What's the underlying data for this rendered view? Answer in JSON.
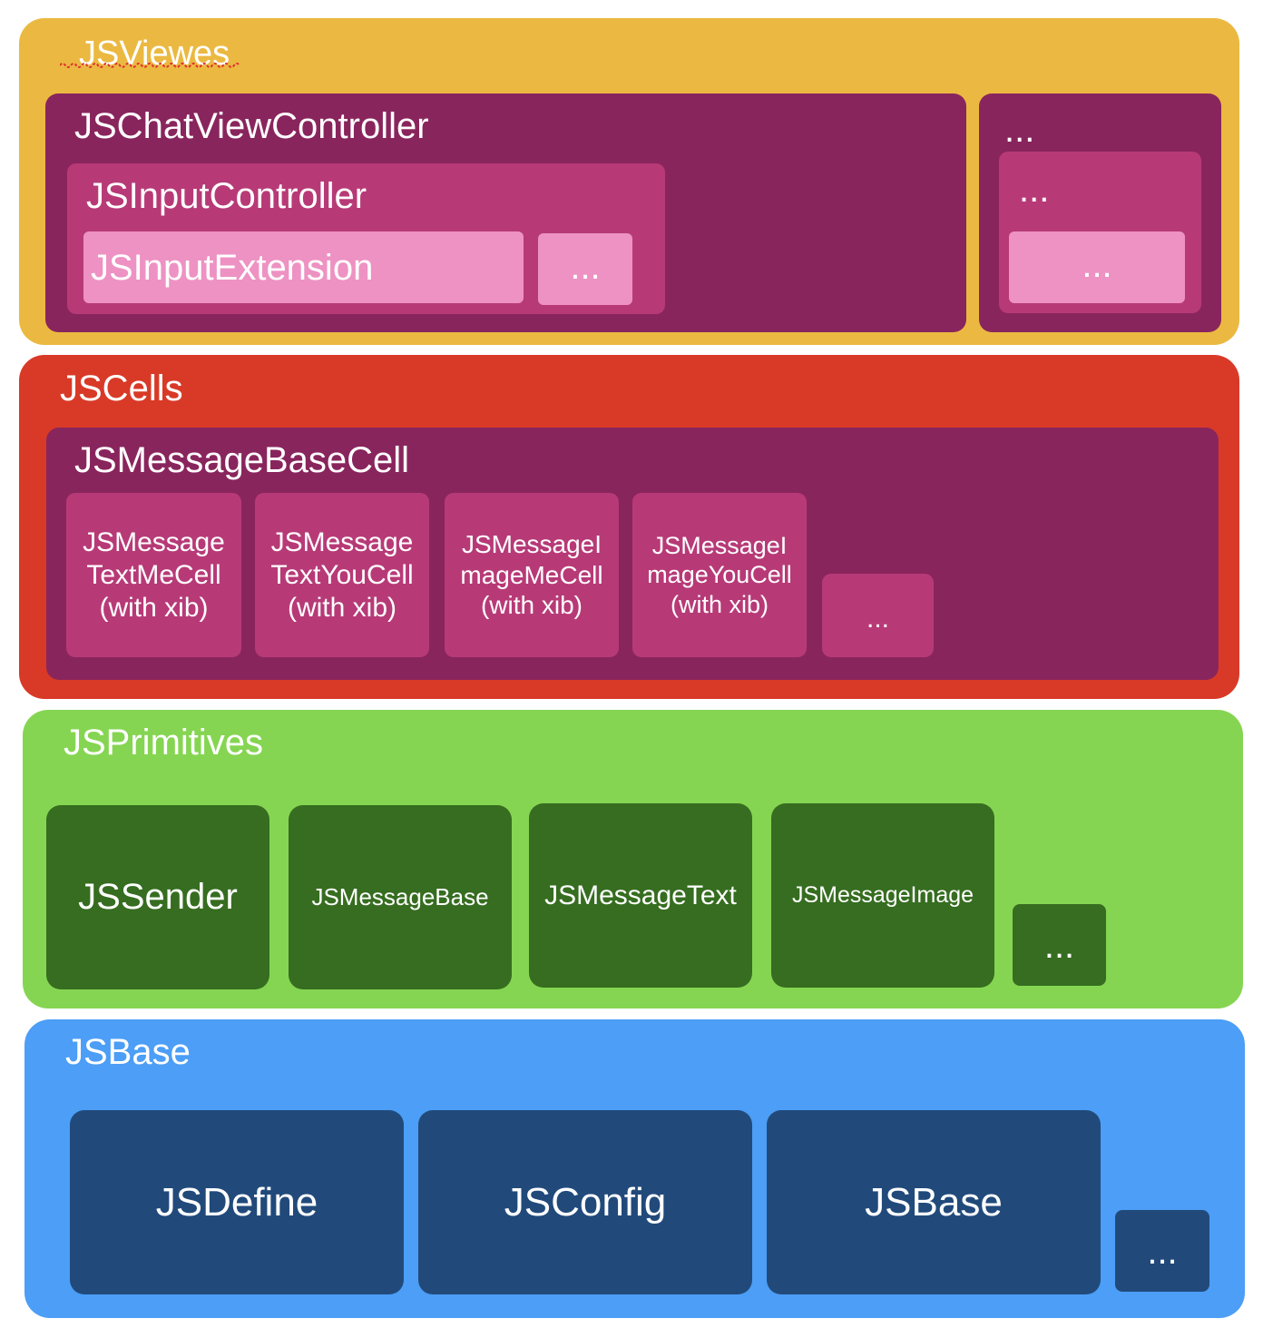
{
  "colors": {
    "views_layer": "#ebb941",
    "cells_layer": "#d83a27",
    "primitives_layer": "#85d552",
    "base_layer": "#4c9ef6",
    "dark_magenta": "#89255d",
    "magenta": "#b73a77",
    "pink": "#ed92c3",
    "dark_green": "#366d20",
    "dark_blue": "#214a7b"
  },
  "views": {
    "title": "JSViewes",
    "chat_controller": "JSChatViewController",
    "input_controller": "JSInputController",
    "input_extension": "JSInputExtension",
    "input_more": "...",
    "more_outer": "...",
    "more_mid": "...",
    "more_inner": "..."
  },
  "cells": {
    "title": "JSCells",
    "base_cell": "JSMessageBaseCell",
    "items": [
      "JSMessage\nTextMeCell\n(with xib)",
      "JSMessage\nTextYouCell\n(with xib)",
      "JSMessageI\nmageMeCell\n(with xib)",
      "JSMessageI\nmageYouCell\n(with xib)"
    ],
    "more": "..."
  },
  "primitives": {
    "title": "JSPrimitives",
    "items": [
      "JSSender",
      "JSMessageBase",
      "JSMessageText",
      "JSMessageImage"
    ],
    "more": "..."
  },
  "base": {
    "title": "JSBase",
    "items": [
      "JSDefine",
      "JSConfig",
      "JSBase"
    ],
    "more": "..."
  }
}
